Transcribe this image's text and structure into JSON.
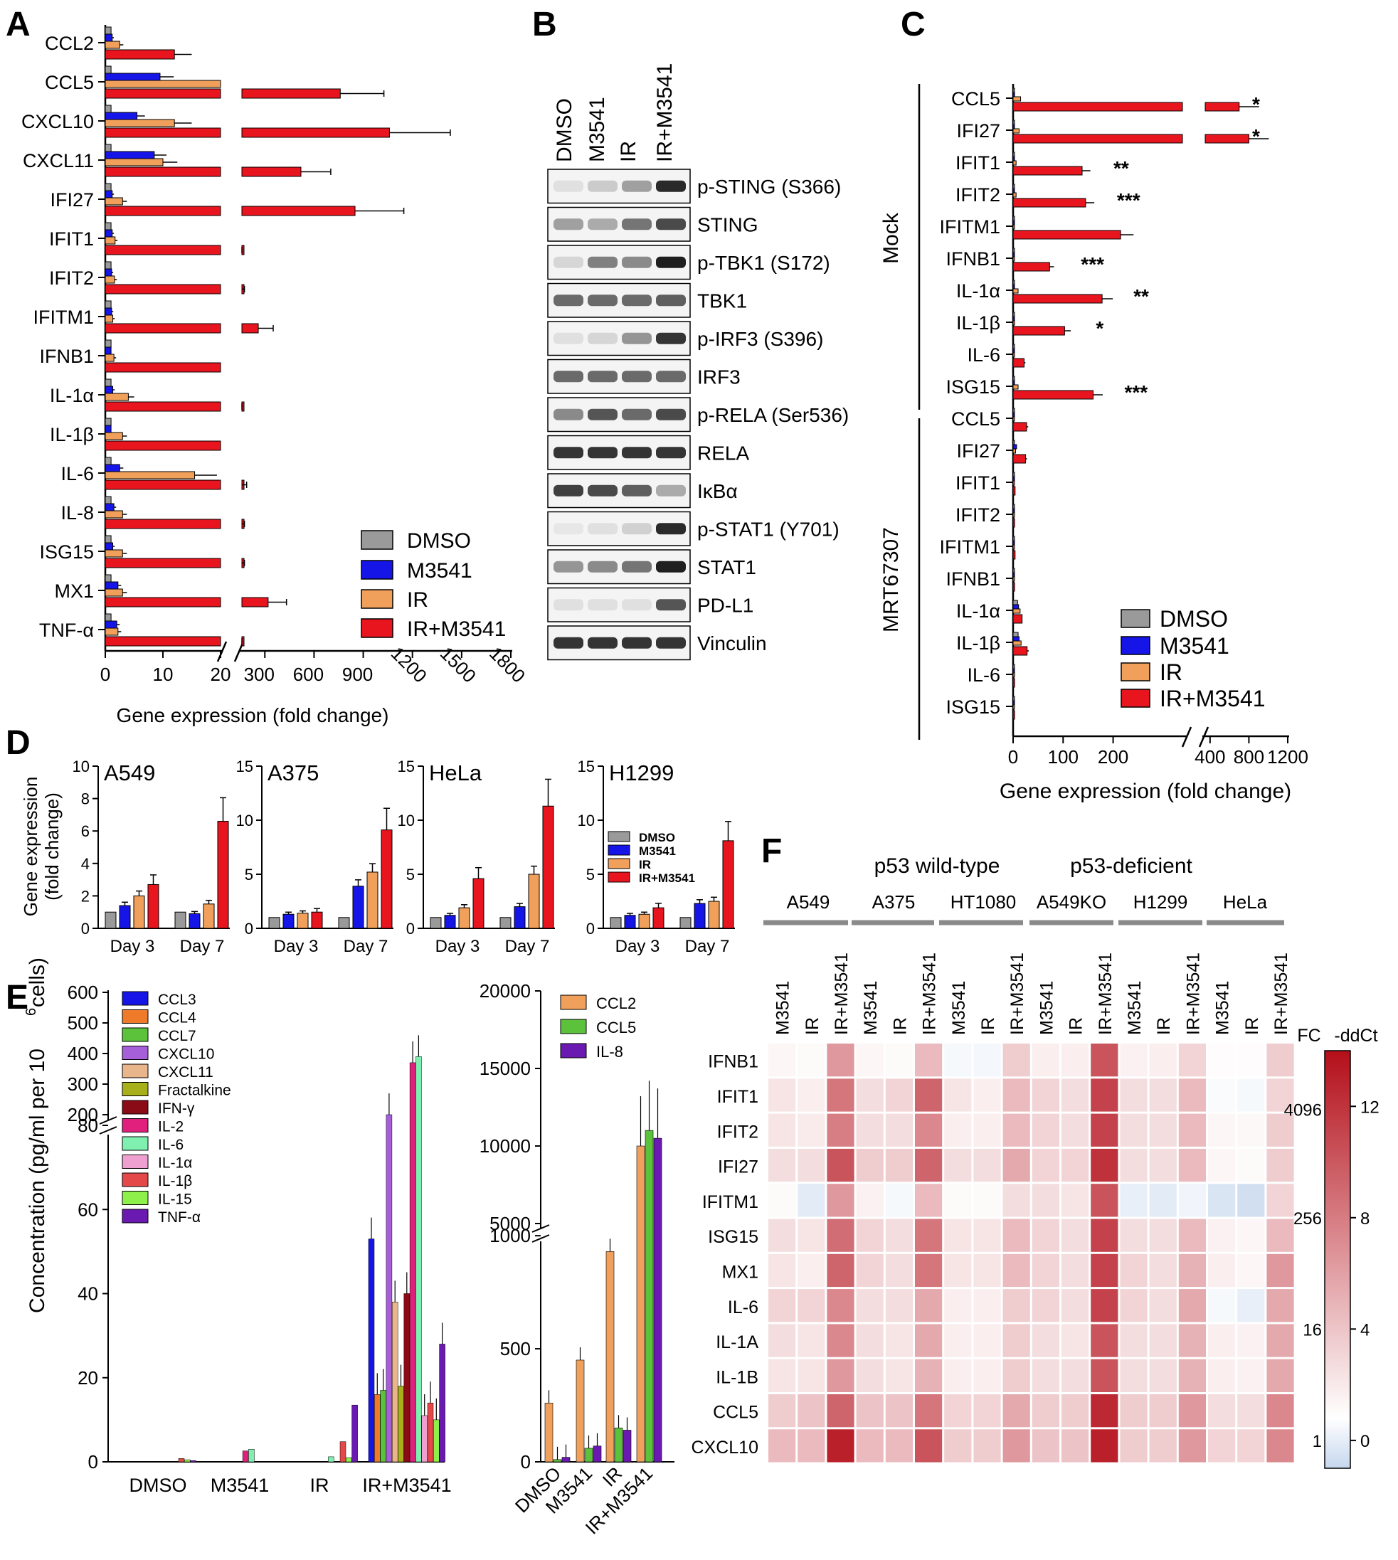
{
  "colors": {
    "DMSO": "#9a9a9a",
    "M3541": "#1515e8",
    "IR": "#f0a05a",
    "IR+M3541": "#e8141e"
  },
  "panels": {
    "A": "A",
    "B": "B",
    "C": "C",
    "D": "D",
    "E": "E",
    "F": "F"
  },
  "legend_main": [
    "DMSO",
    "M3541",
    "IR",
    "IR+M3541"
  ],
  "panel_A": {
    "xlabel": "Gene expression (fold change)",
    "ticks_left": [
      "0",
      "10",
      "20"
    ],
    "ticks_right": [
      "300",
      "600",
      "900",
      "1200",
      "1500",
      "1800"
    ],
    "genes": [
      "CCL2",
      "CCL5",
      "CXCL10",
      "CXCL11",
      "IFI27",
      "IFIT1",
      "IFIT2",
      "IFITM1",
      "IFNB1",
      "IL-1α",
      "IL-1β",
      "IL-6",
      "IL-8",
      "ISG15",
      "MX1",
      "TNF-α"
    ]
  },
  "chart_data": [
    {
      "type": "bar",
      "title": "",
      "xlabel": "Gene expression (fold change)",
      "categories": [
        "CCL2",
        "CCL5",
        "CXCL10",
        "CXCL11",
        "IFI27",
        "IFIT1",
        "IFIT2",
        "IFITM1",
        "IFNB1",
        "IL-1α",
        "IL-1β",
        "IL-6",
        "IL-8",
        "ISG15",
        "MX1",
        "TNF-α"
      ],
      "series": [
        {
          "name": "DMSO",
          "values": [
            1,
            1,
            1,
            1,
            1,
            1,
            1,
            1,
            1,
            1,
            1,
            1,
            1,
            1,
            1,
            1
          ]
        },
        {
          "name": "M3541",
          "values": [
            1.2,
            9.5,
            5.5,
            8.5,
            1.2,
            1.2,
            1.1,
            1.1,
            1.0,
            1.3,
            1.0,
            2.5,
            1.5,
            1.3,
            2.2,
            2.0
          ]
        },
        {
          "name": "IR",
          "values": [
            2.5,
            22,
            12,
            10,
            3,
            1.7,
            1.6,
            1.3,
            1.5,
            4,
            3,
            15.5,
            3,
            3,
            3,
            2.2
          ]
        },
        {
          "name": "IR+M3541",
          "values": [
            12,
            760,
            1060,
            520,
            850,
            110,
            130,
            260,
            20,
            45,
            20,
            140,
            130,
            130,
            320,
            70
          ]
        }
      ]
    },
    {
      "type": "bar",
      "title": "",
      "xlabel": "Gene expression (fold change)",
      "categories": [
        "CCL5",
        "IFI27",
        "IFIT1",
        "IFIT2",
        "IFITM1",
        "IFNB1",
        "IL-1α",
        "IL-1β",
        "IL-6",
        "ISG15",
        "CCL5",
        "IFI27",
        "IFIT1",
        "IFIT2",
        "IFITM1",
        "IFNB1",
        "IL-1α",
        "IL-1β",
        "IL-6",
        "ISG15"
      ],
      "groups": [
        "Mock",
        "MRT67307"
      ],
      "series": [
        {
          "name": "DMSO",
          "values": [
            1,
            1,
            1,
            1,
            1,
            1,
            1,
            1,
            1,
            1,
            1,
            1,
            1,
            1,
            1,
            1,
            9,
            10,
            1,
            1
          ]
        },
        {
          "name": "M3541",
          "values": [
            3,
            2,
            1,
            1,
            1,
            1,
            1,
            1,
            1,
            1,
            1,
            7,
            1,
            1,
            1,
            1,
            11,
            12,
            1,
            1
          ]
        },
        {
          "name": "IR",
          "values": [
            15,
            12,
            6,
            6,
            1,
            2,
            10,
            3,
            1,
            10,
            2,
            5,
            2,
            1,
            1,
            1,
            14,
            16,
            3,
            1
          ]
        },
        {
          "name": "IR+M3541",
          "values": [
            700,
            800,
            138,
            145,
            215,
            73,
            178,
            103,
            22,
            160,
            27,
            25,
            4,
            3,
            4,
            3,
            18,
            28,
            3,
            3
          ]
        }
      ],
      "ticks": [
        "0",
        "100",
        "200",
        "400",
        "800",
        "1200"
      ],
      "significance": [
        "*",
        "*",
        "**",
        "***",
        "",
        "***",
        "**",
        "*",
        "",
        "***"
      ]
    },
    {
      "type": "bar",
      "title": "",
      "ylabel": "Gene expression (fold change)",
      "panels": [
        {
          "name": "A549",
          "ylim": [
            0,
            10
          ],
          "ticks": [
            "0",
            "2",
            "4",
            "6",
            "8",
            "10"
          ],
          "days": [
            "Day 3",
            "Day 7"
          ],
          "values": [
            [
              1,
              1.4,
              2.0,
              2.7
            ],
            [
              1,
              0.9,
              1.5,
              6.6
            ]
          ]
        },
        {
          "name": "A375",
          "ylim": [
            0,
            15
          ],
          "ticks": [
            "0",
            "5",
            "10",
            "15"
          ],
          "days": [
            "Day 3",
            "Day 7"
          ],
          "values": [
            [
              1,
              1.3,
              1.4,
              1.5
            ],
            [
              1,
              3.9,
              5.2,
              9.1
            ]
          ]
        },
        {
          "name": "HeLa",
          "ylim": [
            0,
            15
          ],
          "ticks": [
            "0",
            "5",
            "10",
            "15"
          ],
          "days": [
            "Day 3",
            "Day 7"
          ],
          "values": [
            [
              1,
              1.2,
              1.9,
              4.6
            ],
            [
              1,
              2.0,
              5.0,
              11.3
            ]
          ]
        },
        {
          "name": "H1299",
          "ylim": [
            0,
            15
          ],
          "ticks": [
            "0",
            "5",
            "10",
            "15"
          ],
          "days": [
            "Day 3",
            "Day 7"
          ],
          "values": [
            [
              1,
              1.2,
              1.3,
              1.9
            ],
            [
              1,
              2.3,
              2.5,
              8.1
            ]
          ]
        }
      ],
      "series_names": [
        "DMSO",
        "M3541",
        "IR",
        "IR+M3541"
      ]
    },
    {
      "type": "bar",
      "title": "",
      "ylabel": "Concentration (pg/ml per 10⁶ cells)",
      "categories": [
        "DMSO",
        "M3541",
        "IR",
        "IR+M3541"
      ],
      "series": [
        {
          "name": "CCL3",
          "values": [
            0,
            0,
            0,
            53
          ]
        },
        {
          "name": "CCL4",
          "values": [
            0,
            0,
            0,
            16
          ]
        },
        {
          "name": "CCL7",
          "values": [
            0,
            0,
            0,
            17
          ]
        },
        {
          "name": "CXCL10",
          "values": [
            0,
            0,
            0,
            170
          ]
        },
        {
          "name": "CXCL11",
          "values": [
            0,
            0,
            0,
            38
          ]
        },
        {
          "name": "Fractalkine",
          "values": [
            0,
            0,
            0,
            18
          ]
        },
        {
          "name": "IFN-γ",
          "values": [
            0,
            0,
            0,
            40
          ]
        },
        {
          "name": "IL-2",
          "values": [
            0,
            2.6,
            0,
            370
          ]
        },
        {
          "name": "IL-6",
          "values": [
            0,
            3,
            1.2,
            390
          ]
        },
        {
          "name": "IL-1α",
          "values": [
            0,
            0,
            0,
            11
          ]
        },
        {
          "name": "IL-1β",
          "values": [
            0.8,
            0,
            4.8,
            14
          ]
        },
        {
          "name": "IL-15",
          "values": [
            0.5,
            0,
            1,
            10
          ]
        },
        {
          "name": "TNF-α",
          "values": [
            0.3,
            0,
            13.5,
            28
          ]
        }
      ],
      "yticks_low": [
        "0",
        "20",
        "40",
        "60",
        "80"
      ],
      "yticks_high": [
        "200",
        "300",
        "400",
        "500",
        "600"
      ]
    },
    {
      "type": "bar",
      "title": "",
      "categories": [
        "DMSO",
        "M3541",
        "IR",
        "IR+M3541"
      ],
      "series": [
        {
          "name": "CCL2",
          "values": [
            260,
            450,
            930,
            10000
          ]
        },
        {
          "name": "CCL5",
          "values": [
            10,
            60,
            150,
            11000
          ]
        },
        {
          "name": "IL-8",
          "values": [
            20,
            70,
            140,
            10500
          ]
        }
      ],
      "yticks_low": [
        "0",
        "500",
        "1000"
      ],
      "yticks_high": [
        "5000",
        "10000",
        "15000",
        "20000"
      ]
    },
    {
      "type": "heatmap",
      "title": "",
      "groups": [
        "p53 wild-type",
        "p53-deficient"
      ],
      "cell_lines": [
        "A549",
        "A375",
        "HT1080",
        "A549KO",
        "H1299",
        "HeLa"
      ],
      "treatments": [
        "M3541",
        "IR",
        "IR+M3541"
      ],
      "rows": [
        "IFNB1",
        "IFIT1",
        "IFIT2",
        "IFI27",
        "IFITM1",
        "ISG15",
        "MX1",
        "IL-6",
        "IL-1A",
        "IL-1B",
        "CCL5",
        "CXCL10"
      ],
      "values": [
        [
          0.5,
          0.3,
          6,
          0.5,
          0.3,
          4,
          -0.3,
          -0.4,
          3,
          1,
          1,
          10,
          0.8,
          1,
          2.5,
          0.2,
          0.2,
          3
        ],
        [
          1.5,
          1,
          8,
          2,
          2.5,
          9,
          1.5,
          1,
          4,
          2.5,
          2,
          11,
          2,
          2,
          4,
          -0.2,
          -0.3,
          2.5
        ],
        [
          1.5,
          1.2,
          7.5,
          2,
          2,
          7,
          1,
          1,
          4,
          2.5,
          2,
          11,
          2,
          2,
          4,
          0.5,
          0.4,
          3
        ],
        [
          2,
          2,
          10,
          3,
          3,
          9,
          2,
          2,
          5,
          2.5,
          2.5,
          12,
          2,
          2,
          4,
          0.5,
          0.3,
          3
        ],
        [
          0.3,
          -1,
          6,
          0.8,
          -0.3,
          4,
          0.3,
          0.3,
          2,
          2,
          1.5,
          10,
          -0.8,
          -1,
          -0.5,
          -1.3,
          -1.6,
          2.5
        ],
        [
          2,
          1.5,
          8.5,
          2.5,
          2,
          8,
          1.5,
          1.5,
          4,
          2.5,
          2,
          11,
          2,
          2,
          4,
          0.8,
          0.5,
          4
        ],
        [
          1.5,
          1,
          9,
          2.5,
          2,
          8,
          1.5,
          1.5,
          4,
          2.5,
          2,
          11,
          2.5,
          2,
          4.5,
          1,
          0.5,
          6
        ],
        [
          2.5,
          2.5,
          7,
          2,
          2,
          5,
          1,
          1,
          3,
          2.5,
          2,
          11,
          2.5,
          2,
          5,
          -0.3,
          -0.8,
          5
        ],
        [
          2,
          1.5,
          7,
          2,
          1.5,
          5,
          1,
          1,
          3,
          2,
          1.5,
          10,
          2,
          2,
          4.5,
          1,
          0.8,
          5
        ],
        [
          1.5,
          1.5,
          6,
          2,
          1.5,
          4.5,
          1,
          1,
          3,
          2,
          2,
          10,
          2,
          2,
          4.5,
          1,
          0.8,
          5
        ],
        [
          3,
          3.5,
          9,
          3.5,
          3.5,
          8,
          2.5,
          2.5,
          5,
          3,
          3,
          12.5,
          3,
          3,
          6,
          2,
          2,
          7
        ],
        [
          4,
          4,
          13,
          4,
          4,
          10,
          3,
          3,
          6,
          3.5,
          3.5,
          13,
          3,
          3,
          6,
          2.5,
          2.5,
          7
        ]
      ],
      "colorbar": {
        "title_fc": "FC",
        "title_ddct": "-ddCt",
        "fc_ticks": [
          "4096",
          "256",
          "16",
          "1"
        ],
        "ddct_ticks": [
          "12",
          "8",
          "4",
          "0"
        ],
        "range": [
          -1,
          14
        ],
        "low": "#c6d7ee",
        "mid": "#ffffff",
        "high": "#b40f1a"
      }
    }
  ],
  "panel_B": {
    "columns": [
      "DMSO",
      "M3541",
      "IR",
      "IR+M3541"
    ],
    "rows": [
      "p-STING (S366)",
      "STING",
      "p-TBK1 (S172)",
      "TBK1",
      "p-IRF3 (S396)",
      "IRF3",
      "p-RELA (Ser536)",
      "RELA",
      "IκBα",
      "p-STAT1 (Y701)",
      "STAT1",
      "PD-L1",
      "Vinculin"
    ],
    "intensities": [
      [
        0.05,
        0.15,
        0.35,
        0.9
      ],
      [
        0.35,
        0.3,
        0.55,
        0.75
      ],
      [
        0.1,
        0.5,
        0.45,
        0.95
      ],
      [
        0.6,
        0.6,
        0.6,
        0.65
      ],
      [
        0.05,
        0.1,
        0.4,
        0.85
      ],
      [
        0.6,
        0.6,
        0.6,
        0.6
      ],
      [
        0.45,
        0.7,
        0.6,
        0.75
      ],
      [
        0.85,
        0.85,
        0.85,
        0.85
      ],
      [
        0.8,
        0.75,
        0.65,
        0.3
      ],
      [
        0.02,
        0.05,
        0.12,
        0.9
      ],
      [
        0.4,
        0.45,
        0.55,
        0.95
      ],
      [
        0.05,
        0.05,
        0.05,
        0.7
      ],
      [
        0.85,
        0.85,
        0.85,
        0.85
      ]
    ]
  },
  "panel_C": {
    "xlabel": "Gene expression (fold change)",
    "group_mock": "Mock",
    "group_mrt": "MRT67307",
    "genes": [
      "CCL5",
      "IFI27",
      "IFIT1",
      "IFIT2",
      "IFITM1",
      "IFNB1",
      "IL-1α",
      "IL-1β",
      "IL-6",
      "ISG15",
      "CCL5",
      "IFI27",
      "IFIT1",
      "IFIT2",
      "IFITM1",
      "IFNB1",
      "IL-1α",
      "IL-1β",
      "IL-6",
      "ISG15"
    ],
    "ticks": [
      "0",
      "100",
      "200",
      "400",
      "800",
      "1200"
    ]
  },
  "panel_D": {
    "ylabel_1": "Gene expression",
    "ylabel_2": "(fold change)"
  },
  "panel_E": {
    "ylabel": "Concentration (pg/ml per 10",
    "ylabel_sup": "6",
    "ylabel_end": " cells)"
  },
  "panel_F": {
    "group_wt": "p53 wild-type",
    "group_def": "p53-deficient"
  }
}
